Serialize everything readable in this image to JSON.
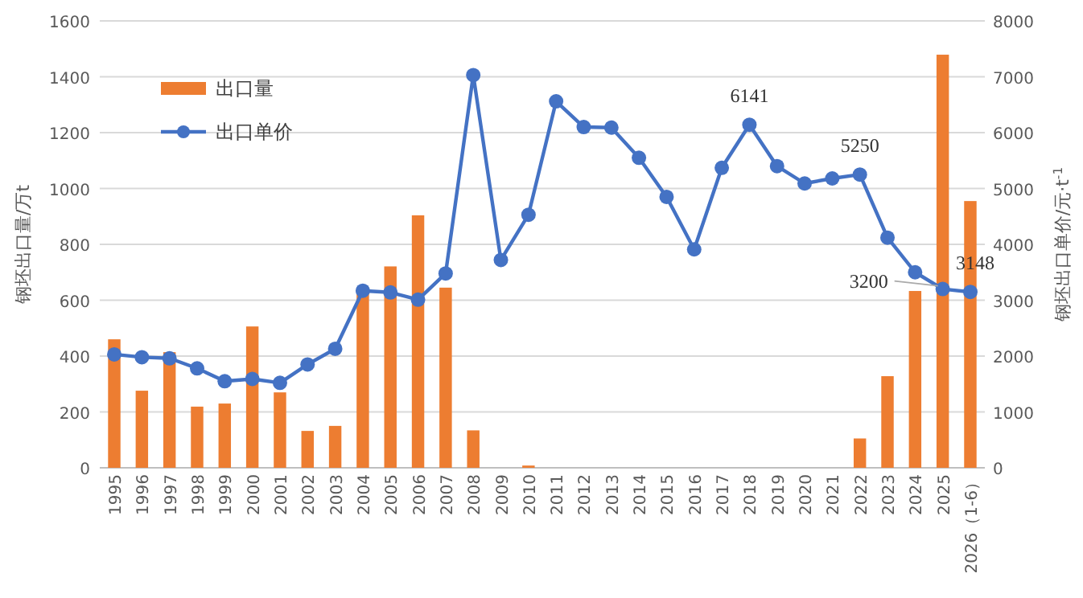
{
  "chart_data": {
    "type": "bar",
    "categories": [
      "1995",
      "1996",
      "1997",
      "1998",
      "1999",
      "2000",
      "2001",
      "2002",
      "2003",
      "2004",
      "2005",
      "2006",
      "2007",
      "2008",
      "2009",
      "2010",
      "2011",
      "2012",
      "2013",
      "2014",
      "2015",
      "2016",
      "2017",
      "2018",
      "2019",
      "2020",
      "2021",
      "2022",
      "2023",
      "2024",
      "2025",
      "2026（1-6）"
    ],
    "series": [
      {
        "name": "出口量",
        "color": "#ed7d31",
        "values": [
          460,
          276,
          414,
          219,
          230,
          506,
          270,
          132,
          150,
          629,
          721,
          904,
          645,
          134,
          0,
          8,
          0,
          0,
          0,
          0,
          0,
          0,
          0,
          0,
          0,
          0,
          0,
          105,
          328,
          633,
          1479,
          955
        ]
      },
      {
        "name": "出口单价",
        "type": "line",
        "axis": "y2",
        "color": "#4472c4",
        "values": [
          2030,
          1980,
          1960,
          1780,
          1550,
          1590,
          1520,
          1850,
          2130,
          3170,
          3140,
          3010,
          3480,
          7030,
          3720,
          4530,
          6560,
          6100,
          6090,
          5550,
          4850,
          3910,
          5370,
          6141,
          5400,
          5090,
          5180,
          5250,
          4120,
          3500,
          3200,
          3148
        ],
        "value_labels": [
          null,
          null,
          null,
          null,
          null,
          null,
          null,
          null,
          null,
          null,
          null,
          null,
          null,
          null,
          null,
          null,
          null,
          null,
          null,
          null,
          null,
          null,
          null,
          "6141",
          null,
          null,
          null,
          "5250",
          null,
          null,
          "3200",
          "3148"
        ]
      }
    ],
    "ylabel": "钢坯出口量/万t",
    "y2label": "钢坯出口单价/元·t$^{-1}$",
    "ylim": [
      0,
      1600
    ],
    "yticks": [
      0,
      200,
      400,
      600,
      800,
      1000,
      1200,
      1400,
      1600
    ],
    "y2lim": [
      0,
      8000
    ],
    "y2ticks": [
      0,
      1000,
      2000,
      3000,
      4000,
      5000,
      6000,
      7000,
      8000
    ],
    "grid": "y",
    "legend": "top left",
    "marker": "circle",
    "line_style": "solid"
  }
}
